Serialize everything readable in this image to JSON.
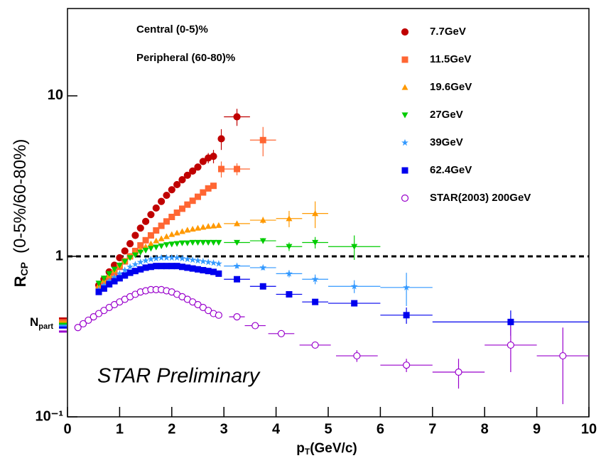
{
  "chart_data": {
    "type": "scatter",
    "log_y": true,
    "ylabel": "R",
    "ylabel_sub": "CP",
    "ylabel_note": "(0-5%/60-80%)",
    "xlabel": "p",
    "xlabel_sub": "T",
    "xlabel_rest": "(GeV/c)",
    "xlim": [
      0,
      10
    ],
    "ylim": [
      0.1,
      35
    ],
    "xticks": [
      0,
      1,
      2,
      3,
      4,
      5,
      6,
      7,
      8,
      9,
      10
    ],
    "yticks": [
      {
        "value": 0.1,
        "label": "10⁻¹"
      },
      1,
      10
    ],
    "reference_line": 1,
    "annotations": [
      "Central (0-5)%",
      "Peripheral (60-80)%",
      "STAR Preliminary"
    ],
    "npart_label": "N",
    "npart_sub": "part",
    "series": [
      {
        "name": "7.7GeV",
        "color": "#c00000",
        "marker": "circle",
        "npart": 0.41,
        "x": [
          0.6,
          0.7,
          0.8,
          0.9,
          1.0,
          1.1,
          1.2,
          1.3,
          1.4,
          1.5,
          1.6,
          1.7,
          1.8,
          1.9,
          2.0,
          2.1,
          2.2,
          2.3,
          2.4,
          2.5,
          2.6,
          2.7,
          2.8,
          2.95,
          3.25
        ],
        "values": [
          0.66,
          0.72,
          0.8,
          0.88,
          0.98,
          1.08,
          1.2,
          1.35,
          1.5,
          1.65,
          1.82,
          2.0,
          2.2,
          2.4,
          2.6,
          2.8,
          3.0,
          3.2,
          3.4,
          3.6,
          3.9,
          4.1,
          4.2,
          5.4,
          7.4
        ],
        "xerr": [
          0,
          0,
          0,
          0,
          0,
          0,
          0,
          0,
          0,
          0,
          0,
          0,
          0,
          0,
          0,
          0,
          0,
          0,
          0,
          0,
          0,
          0,
          0,
          0.05,
          0.25
        ],
        "yerr": [
          0,
          0,
          0,
          0,
          0,
          0,
          0,
          0,
          0,
          0,
          0,
          0,
          0,
          0,
          0,
          0,
          0,
          0,
          0,
          0,
          0,
          0.3,
          0.4,
          0.8,
          0.9
        ]
      },
      {
        "name": "11.5GeV",
        "color": "#ff6633",
        "marker": "square",
        "npart": 0.4,
        "x": [
          0.6,
          0.7,
          0.8,
          0.9,
          1.0,
          1.1,
          1.2,
          1.3,
          1.4,
          1.5,
          1.6,
          1.7,
          1.8,
          1.9,
          2.0,
          2.1,
          2.2,
          2.3,
          2.4,
          2.5,
          2.6,
          2.7,
          2.8,
          2.95,
          3.25,
          3.75
        ],
        "values": [
          0.62,
          0.67,
          0.73,
          0.79,
          0.86,
          0.93,
          1.0,
          1.08,
          1.17,
          1.26,
          1.35,
          1.45,
          1.55,
          1.65,
          1.76,
          1.87,
          1.98,
          2.1,
          2.22,
          2.35,
          2.5,
          2.65,
          2.75,
          3.5,
          3.5,
          5.3
        ],
        "xerr": [
          0,
          0,
          0,
          0,
          0,
          0,
          0,
          0,
          0,
          0,
          0,
          0,
          0,
          0,
          0,
          0,
          0,
          0,
          0,
          0,
          0,
          0,
          0,
          0.05,
          0.25,
          0.25
        ],
        "yerr": [
          0,
          0,
          0,
          0,
          0,
          0,
          0,
          0,
          0,
          0,
          0,
          0,
          0,
          0,
          0,
          0,
          0,
          0,
          0,
          0,
          0,
          0,
          0,
          0.4,
          0.3,
          1.1
        ]
      },
      {
        "name": "19.6GeV",
        "color": "#ff9900",
        "marker": "triangle-up",
        "npart": 0.39,
        "x": [
          0.6,
          0.7,
          0.8,
          0.9,
          1.0,
          1.1,
          1.2,
          1.3,
          1.4,
          1.5,
          1.6,
          1.7,
          1.8,
          1.9,
          2.0,
          2.1,
          2.2,
          2.3,
          2.4,
          2.5,
          2.6,
          2.7,
          2.8,
          2.9,
          3.25,
          3.75,
          4.25,
          4.75
        ],
        "values": [
          0.66,
          0.71,
          0.76,
          0.82,
          0.88,
          0.94,
          1.0,
          1.05,
          1.1,
          1.15,
          1.2,
          1.25,
          1.29,
          1.33,
          1.37,
          1.4,
          1.43,
          1.46,
          1.48,
          1.5,
          1.52,
          1.54,
          1.55,
          1.56,
          1.6,
          1.68,
          1.72,
          1.85
        ],
        "xerr": [
          0,
          0,
          0,
          0,
          0,
          0,
          0,
          0,
          0,
          0,
          0,
          0,
          0,
          0,
          0,
          0,
          0,
          0,
          0,
          0,
          0,
          0,
          0,
          0,
          0.25,
          0.25,
          0.25,
          0.25
        ],
        "yerr": [
          0,
          0,
          0,
          0,
          0,
          0,
          0,
          0,
          0,
          0,
          0,
          0,
          0,
          0,
          0,
          0,
          0,
          0,
          0,
          0,
          0,
          0,
          0,
          0,
          0.05,
          0.08,
          0.2,
          0.35
        ]
      },
      {
        "name": "27GeV",
        "color": "#00cc00",
        "marker": "triangle-down",
        "npart": 0.38,
        "x": [
          0.6,
          0.7,
          0.8,
          0.9,
          1.0,
          1.1,
          1.2,
          1.3,
          1.4,
          1.5,
          1.6,
          1.7,
          1.8,
          1.9,
          2.0,
          2.1,
          2.2,
          2.3,
          2.4,
          2.5,
          2.6,
          2.7,
          2.8,
          2.9,
          3.25,
          3.75,
          4.25,
          4.75,
          5.5
        ],
        "values": [
          0.68,
          0.73,
          0.78,
          0.83,
          0.88,
          0.93,
          0.98,
          1.02,
          1.06,
          1.09,
          1.12,
          1.14,
          1.16,
          1.18,
          1.19,
          1.2,
          1.21,
          1.21,
          1.22,
          1.22,
          1.22,
          1.22,
          1.22,
          1.22,
          1.22,
          1.25,
          1.15,
          1.22,
          1.15
        ],
        "xerr": [
          0,
          0,
          0,
          0,
          0,
          0,
          0,
          0,
          0,
          0,
          0,
          0,
          0,
          0,
          0,
          0,
          0,
          0,
          0,
          0,
          0,
          0,
          0,
          0,
          0.25,
          0.25,
          0.25,
          0.25,
          0.5
        ],
        "yerr": [
          0,
          0,
          0,
          0,
          0,
          0,
          0,
          0,
          0,
          0,
          0,
          0,
          0,
          0,
          0,
          0,
          0,
          0,
          0,
          0,
          0,
          0,
          0,
          0,
          0.04,
          0.05,
          0.07,
          0.1,
          0.2
        ]
      },
      {
        "name": "39GeV",
        "color": "#3399ff",
        "marker": "star",
        "npart": 0.37,
        "x": [
          0.6,
          0.7,
          0.8,
          0.9,
          1.0,
          1.1,
          1.2,
          1.3,
          1.4,
          1.5,
          1.6,
          1.7,
          1.8,
          1.9,
          2.0,
          2.1,
          2.2,
          2.3,
          2.4,
          2.5,
          2.6,
          2.7,
          2.8,
          2.9,
          3.25,
          3.75,
          4.25,
          4.75,
          5.5,
          6.5
        ],
        "values": [
          0.62,
          0.66,
          0.7,
          0.74,
          0.78,
          0.82,
          0.86,
          0.89,
          0.92,
          0.94,
          0.96,
          0.97,
          0.98,
          0.98,
          0.98,
          0.98,
          0.97,
          0.96,
          0.95,
          0.94,
          0.93,
          0.92,
          0.91,
          0.9,
          0.87,
          0.85,
          0.78,
          0.72,
          0.65,
          0.64
        ],
        "xerr": [
          0,
          0,
          0,
          0,
          0,
          0,
          0,
          0,
          0,
          0,
          0,
          0,
          0,
          0,
          0,
          0,
          0,
          0,
          0,
          0,
          0,
          0,
          0,
          0,
          0.25,
          0.25,
          0.25,
          0.25,
          0.5,
          0.5
        ],
        "yerr": [
          0,
          0,
          0,
          0,
          0,
          0,
          0,
          0,
          0,
          0,
          0,
          0,
          0,
          0,
          0,
          0,
          0,
          0,
          0,
          0,
          0,
          0,
          0,
          0,
          0.03,
          0.03,
          0.04,
          0.05,
          0.06,
          0.15
        ]
      },
      {
        "name": "62.4GeV",
        "color": "#0000ee",
        "marker": "square",
        "npart": 0.36,
        "x": [
          0.6,
          0.7,
          0.8,
          0.9,
          1.0,
          1.1,
          1.2,
          1.3,
          1.4,
          1.5,
          1.6,
          1.7,
          1.8,
          1.9,
          2.0,
          2.1,
          2.2,
          2.3,
          2.4,
          2.5,
          2.6,
          2.7,
          2.8,
          2.9,
          3.25,
          3.75,
          4.25,
          4.75,
          5.5,
          6.5,
          8.5
        ],
        "values": [
          0.6,
          0.63,
          0.67,
          0.7,
          0.73,
          0.76,
          0.79,
          0.81,
          0.83,
          0.85,
          0.86,
          0.87,
          0.87,
          0.87,
          0.87,
          0.87,
          0.86,
          0.85,
          0.84,
          0.83,
          0.82,
          0.81,
          0.8,
          0.78,
          0.72,
          0.65,
          0.58,
          0.52,
          0.51,
          0.43,
          0.39
        ],
        "xerr": [
          0,
          0,
          0,
          0,
          0,
          0,
          0,
          0,
          0,
          0,
          0,
          0,
          0,
          0,
          0,
          0,
          0,
          0,
          0,
          0,
          0,
          0,
          0,
          0,
          0.25,
          0.25,
          0.25,
          0.25,
          0.5,
          0.5,
          1.5
        ],
        "yerr": [
          0,
          0,
          0,
          0,
          0,
          0,
          0,
          0,
          0,
          0,
          0,
          0,
          0,
          0,
          0,
          0,
          0,
          0,
          0,
          0,
          0,
          0,
          0,
          0,
          0.01,
          0.01,
          0.01,
          0.015,
          0.02,
          0.05,
          0.07
        ]
      },
      {
        "name": "STAR(2003) 200GeV",
        "color": "#9900cc",
        "marker": "circle-open",
        "npart": 0.34,
        "x": [
          0.2,
          0.3,
          0.4,
          0.5,
          0.6,
          0.7,
          0.8,
          0.9,
          1.0,
          1.1,
          1.2,
          1.3,
          1.4,
          1.5,
          1.6,
          1.7,
          1.8,
          1.9,
          2.0,
          2.1,
          2.2,
          2.3,
          2.4,
          2.5,
          2.6,
          2.7,
          2.8,
          2.9,
          3.25,
          3.6,
          4.1,
          4.75,
          5.55,
          6.5,
          7.5,
          8.5,
          9.5
        ],
        "values": [
          0.36,
          0.38,
          0.4,
          0.42,
          0.44,
          0.46,
          0.48,
          0.5,
          0.52,
          0.54,
          0.56,
          0.58,
          0.6,
          0.61,
          0.62,
          0.62,
          0.62,
          0.61,
          0.6,
          0.58,
          0.56,
          0.54,
          0.52,
          0.5,
          0.48,
          0.46,
          0.44,
          0.43,
          0.42,
          0.37,
          0.33,
          0.28,
          0.24,
          0.21,
          0.19,
          0.28,
          0.24
        ],
        "xerr": [
          0,
          0,
          0,
          0,
          0,
          0,
          0,
          0,
          0,
          0,
          0,
          0,
          0,
          0,
          0,
          0,
          0,
          0,
          0,
          0,
          0,
          0,
          0,
          0,
          0,
          0,
          0,
          0,
          0.15,
          0.2,
          0.25,
          0.3,
          0.4,
          0.5,
          0.5,
          0.5,
          0.5
        ],
        "yerr": [
          0,
          0,
          0,
          0,
          0,
          0,
          0,
          0,
          0,
          0,
          0,
          0,
          0,
          0,
          0,
          0,
          0,
          0,
          0,
          0,
          0,
          0,
          0,
          0,
          0,
          0,
          0,
          0,
          0.01,
          0.01,
          0.01,
          0.01,
          0.02,
          0.02,
          0.04,
          0.09,
          0.12
        ]
      }
    ]
  }
}
